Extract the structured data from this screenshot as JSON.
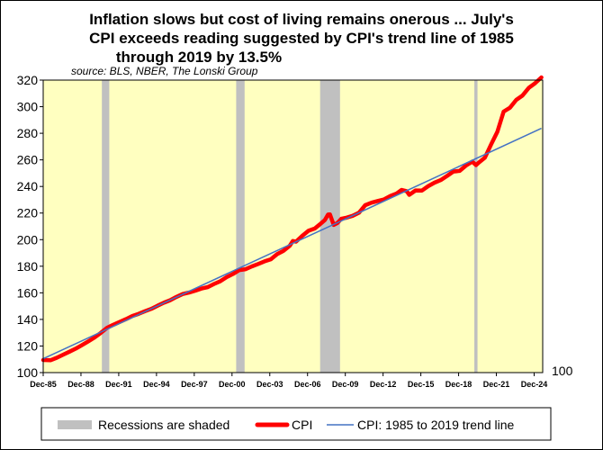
{
  "chart_data": {
    "type": "line",
    "title": [
      "Inflation slows but cost of living remains onerous ... July's",
      "CPI exceeds reading suggested by CPI's trend line of 1985",
      "through 2019 by 13.5%"
    ],
    "source": "source: BLS, NBER, The Lonski Group",
    "ylim": [
      100,
      320
    ],
    "yticks": [
      100,
      120,
      140,
      160,
      180,
      200,
      220,
      240,
      260,
      280,
      300,
      320
    ],
    "right_axis_label": "100",
    "xlim": [
      1985.92,
      2025.6
    ],
    "xticks": [
      {
        "label": "Dec-85",
        "x": 1985.92
      },
      {
        "label": "Dec-88",
        "x": 1988.92
      },
      {
        "label": "Dec-91",
        "x": 1991.92
      },
      {
        "label": "Dec-94",
        "x": 1994.92
      },
      {
        "label": "Dec-97",
        "x": 1997.92
      },
      {
        "label": "Dec-00",
        "x": 2000.92
      },
      {
        "label": "Dec-03",
        "x": 2003.92
      },
      {
        "label": "Dec-06",
        "x": 2006.92
      },
      {
        "label": "Dec-09",
        "x": 2009.92
      },
      {
        "label": "Dec-12",
        "x": 2012.92
      },
      {
        "label": "Dec-15",
        "x": 2015.92
      },
      {
        "label": "Dec-18",
        "x": 2018.92
      },
      {
        "label": "Dec-21",
        "x": 2021.92
      },
      {
        "label": "Dec-24",
        "x": 2024.92
      }
    ],
    "recessions": [
      {
        "start": 1990.58,
        "end": 1991.17
      },
      {
        "start": 2001.25,
        "end": 2001.92
      },
      {
        "start": 2007.92,
        "end": 2009.5
      },
      {
        "start": 2020.17,
        "end": 2020.42
      }
    ],
    "series": [
      {
        "name": "CPI",
        "color": "#ff0000",
        "x": [
          1985.92,
          1986.5,
          1987.0,
          1987.5,
          1988.0,
          1988.5,
          1989.0,
          1989.5,
          1990.0,
          1990.5,
          1991.0,
          1991.5,
          1992.0,
          1992.5,
          1993.0,
          1993.5,
          1994.0,
          1994.5,
          1995.0,
          1995.5,
          1996.0,
          1996.5,
          1997.0,
          1997.5,
          1998.0,
          1998.5,
          1999.0,
          1999.5,
          2000.0,
          2000.5,
          2001.0,
          2001.5,
          2002.0,
          2002.5,
          2003.0,
          2003.5,
          2004.0,
          2004.5,
          2005.0,
          2005.5,
          2005.75,
          2006.0,
          2006.5,
          2007.0,
          2007.5,
          2007.9,
          2008.3,
          2008.55,
          2008.7,
          2008.85,
          2009.0,
          2009.3,
          2009.6,
          2010.0,
          2010.5,
          2011.0,
          2011.5,
          2012.0,
          2012.5,
          2013.0,
          2013.5,
          2014.0,
          2014.4,
          2014.8,
          2015.0,
          2015.5,
          2016.0,
          2016.5,
          2017.0,
          2017.5,
          2018.0,
          2018.5,
          2019.0,
          2019.5,
          2020.0,
          2020.3,
          2020.5,
          2021.0,
          2021.5,
          2022.0,
          2022.5,
          2023.0,
          2023.5,
          2024.0,
          2024.5,
          2025.0,
          2025.5
        ],
        "values": [
          109.5,
          109.3,
          111.2,
          113.5,
          115.7,
          118.0,
          120.7,
          123.5,
          126.4,
          129.9,
          133.8,
          136.0,
          138.1,
          140.2,
          142.6,
          144.2,
          146.2,
          147.9,
          150.3,
          152.5,
          154.4,
          156.9,
          159.1,
          160.2,
          161.6,
          163.2,
          164.3,
          166.7,
          168.8,
          171.8,
          174.2,
          177.1,
          177.8,
          179.9,
          181.7,
          183.7,
          185.2,
          189.1,
          191.6,
          195.4,
          199.0,
          198.5,
          202.9,
          206.7,
          208.4,
          211.5,
          214.8,
          218.9,
          219.0,
          215.0,
          211.1,
          212.6,
          215.7,
          216.5,
          217.9,
          220.2,
          225.9,
          227.8,
          229.1,
          230.3,
          232.9,
          234.7,
          237.4,
          236.5,
          233.7,
          237.0,
          236.9,
          240.2,
          242.8,
          244.8,
          247.9,
          251.2,
          251.7,
          255.7,
          258.7,
          256.1,
          257.8,
          261.6,
          271.7,
          281.1,
          296.3,
          299.2,
          305.1,
          308.4,
          314.2,
          317.7,
          322.0
        ]
      },
      {
        "name": "CPI: 1985 to 2019 trend line",
        "color": "#4472c4",
        "x": [
          1985.92,
          2025.5
        ],
        "values": [
          110.4,
          283.7
        ]
      }
    ],
    "legend": [
      "Recessions are shaded",
      "CPI",
      "CPI: 1985 to 2019 trend line"
    ],
    "legend_position": "bottom",
    "colors": {
      "plot_background": "#ffffc0",
      "recession": "#c0c0c0"
    }
  }
}
